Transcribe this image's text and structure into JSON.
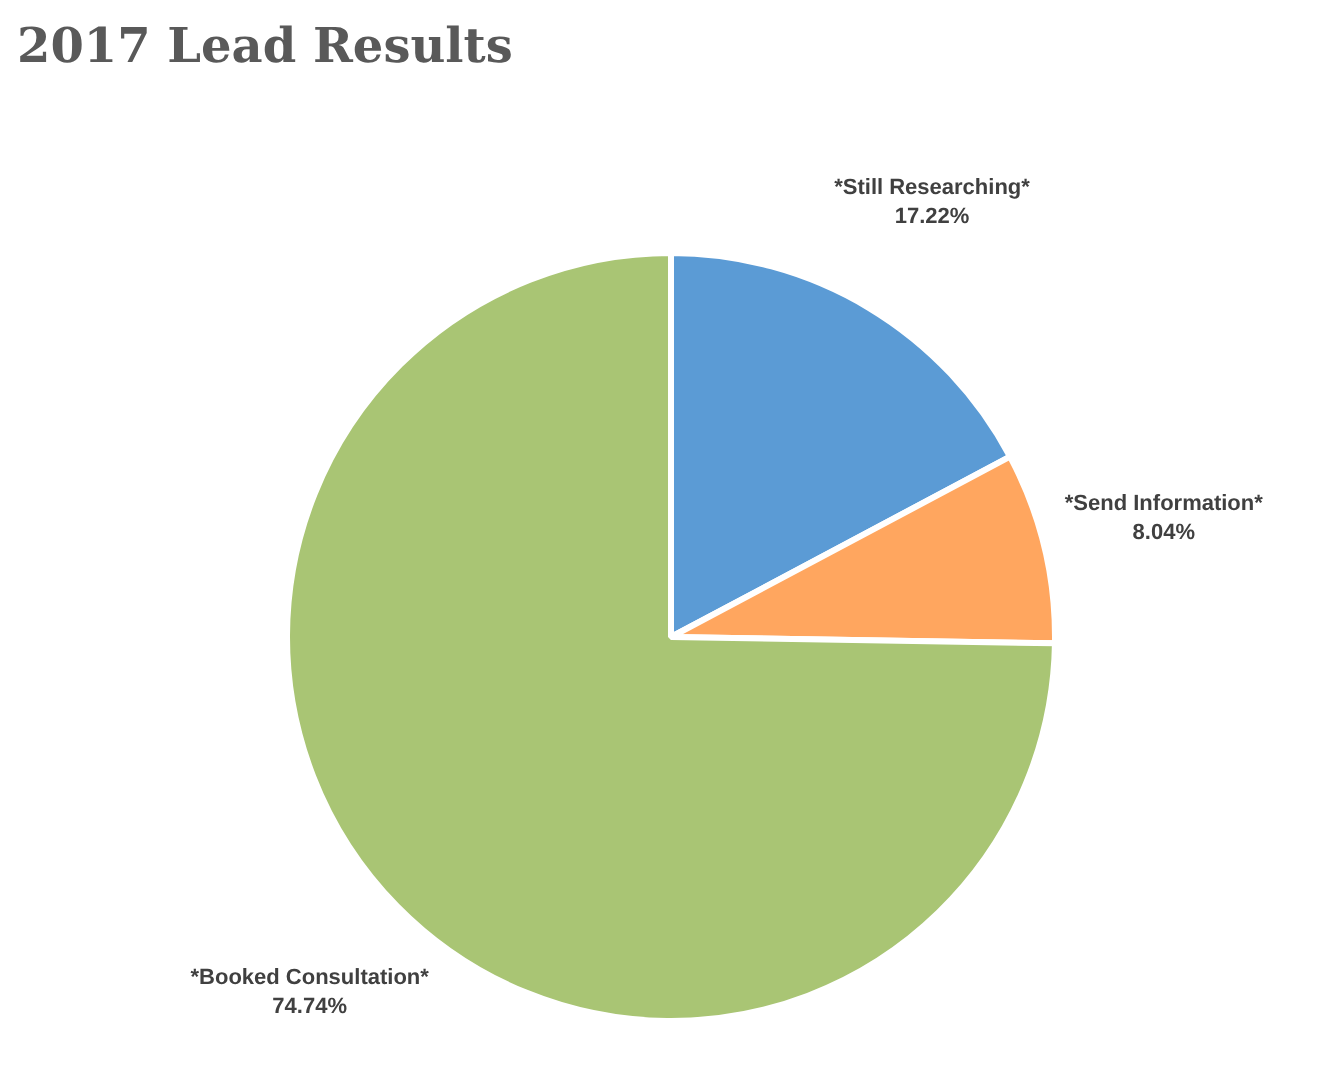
{
  "chart_data": {
    "type": "pie",
    "title": "2017 Lead Results",
    "categories": [
      "*Still Researching*",
      "*Send Information*",
      "*Booked Consultation*"
    ],
    "values": [
      17.22,
      8.04,
      74.74
    ],
    "colors": [
      "#5b9bd5",
      "#ffa65f",
      "#a9c574"
    ],
    "value_labels": [
      "17.22%",
      "8.04%",
      "74.74%"
    ]
  }
}
